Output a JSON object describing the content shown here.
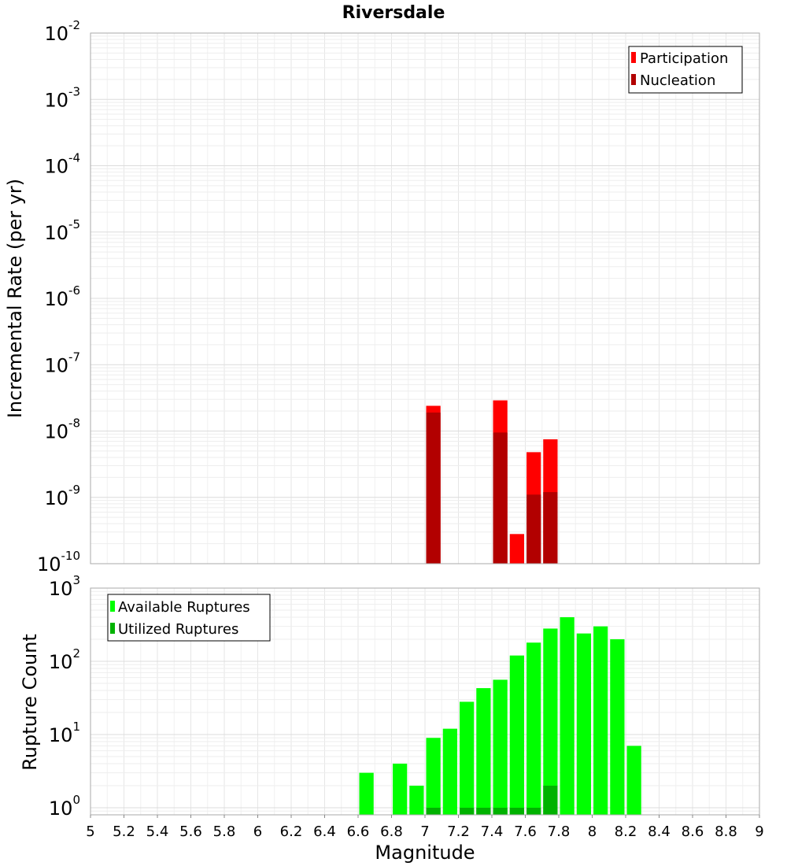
{
  "chart_data": [
    {
      "type": "bar",
      "title": "Riversdale",
      "xlabel": "",
      "ylabel": "Incremental Rate (per yr)",
      "y_scale": "log",
      "ylim": [
        1e-10,
        0.01
      ],
      "xlim": [
        5,
        9
      ],
      "grid": true,
      "legend_position": "top-right",
      "y_ticks": [
        {
          "base": "10",
          "exp": "-2"
        },
        {
          "base": "10",
          "exp": "-3"
        },
        {
          "base": "10",
          "exp": "-4"
        },
        {
          "base": "10",
          "exp": "-5"
        },
        {
          "base": "10",
          "exp": "-6"
        },
        {
          "base": "10",
          "exp": "-7"
        },
        {
          "base": "10",
          "exp": "-8"
        },
        {
          "base": "10",
          "exp": "-9"
        },
        {
          "base": "10",
          "exp": "-10"
        }
      ],
      "series": [
        {
          "name": "Participation",
          "color": "#ff0000",
          "points": [
            {
              "x": 7.05,
              "y": 2.4e-08
            },
            {
              "x": 7.45,
              "y": 2.9e-08
            },
            {
              "x": 7.55,
              "y": 2.8e-10
            },
            {
              "x": 7.65,
              "y": 4.8e-09
            },
            {
              "x": 7.75,
              "y": 7.5e-09
            }
          ]
        },
        {
          "name": "Nucleation",
          "color": "#b20000",
          "points": [
            {
              "x": 7.05,
              "y": 1.9e-08
            },
            {
              "x": 7.45,
              "y": 9.5e-09
            },
            {
              "x": 7.65,
              "y": 1.1e-09
            },
            {
              "x": 7.75,
              "y": 1.2e-09
            }
          ]
        }
      ]
    },
    {
      "type": "bar",
      "title": "",
      "xlabel": "Magnitude",
      "ylabel": "Rupture Count",
      "y_scale": "log",
      "ylim": [
        0.8,
        1000
      ],
      "xlim": [
        5,
        9
      ],
      "grid": true,
      "legend_position": "top-left",
      "x_ticks": [
        "5",
        "5.2",
        "5.4",
        "5.6",
        "5.8",
        "6",
        "6.2",
        "6.4",
        "6.6",
        "6.8",
        "7",
        "7.2",
        "7.4",
        "7.6",
        "7.8",
        "8",
        "8.2",
        "8.4",
        "8.6",
        "8.8",
        "9"
      ],
      "y_ticks": [
        {
          "base": "10",
          "exp": "3",
          "value": 1000
        },
        {
          "base": "10",
          "exp": "2",
          "value": 100
        },
        {
          "base": "10",
          "exp": "1",
          "value": 10
        },
        {
          "base": "10",
          "exp": "0",
          "value": 1
        }
      ],
      "series": [
        {
          "name": "Available Ruptures",
          "color": "#00ff00",
          "points": [
            {
              "x": 6.65,
              "y": 3
            },
            {
              "x": 6.85,
              "y": 4
            },
            {
              "x": 6.95,
              "y": 2
            },
            {
              "x": 7.05,
              "y": 9
            },
            {
              "x": 7.15,
              "y": 12
            },
            {
              "x": 7.25,
              "y": 28
            },
            {
              "x": 7.35,
              "y": 43
            },
            {
              "x": 7.45,
              "y": 56
            },
            {
              "x": 7.55,
              "y": 120
            },
            {
              "x": 7.65,
              "y": 180
            },
            {
              "x": 7.75,
              "y": 280
            },
            {
              "x": 7.85,
              "y": 400
            },
            {
              "x": 7.95,
              "y": 240
            },
            {
              "x": 8.05,
              "y": 300
            },
            {
              "x": 8.15,
              "y": 200
            },
            {
              "x": 8.25,
              "y": 7
            }
          ]
        },
        {
          "name": "Utilized Ruptures",
          "color": "#00b200",
          "points": [
            {
              "x": 7.05,
              "y": 1
            },
            {
              "x": 7.25,
              "y": 1
            },
            {
              "x": 7.35,
              "y": 1
            },
            {
              "x": 7.45,
              "y": 1
            },
            {
              "x": 7.55,
              "y": 1
            },
            {
              "x": 7.65,
              "y": 1
            },
            {
              "x": 7.75,
              "y": 2
            }
          ]
        }
      ]
    }
  ]
}
